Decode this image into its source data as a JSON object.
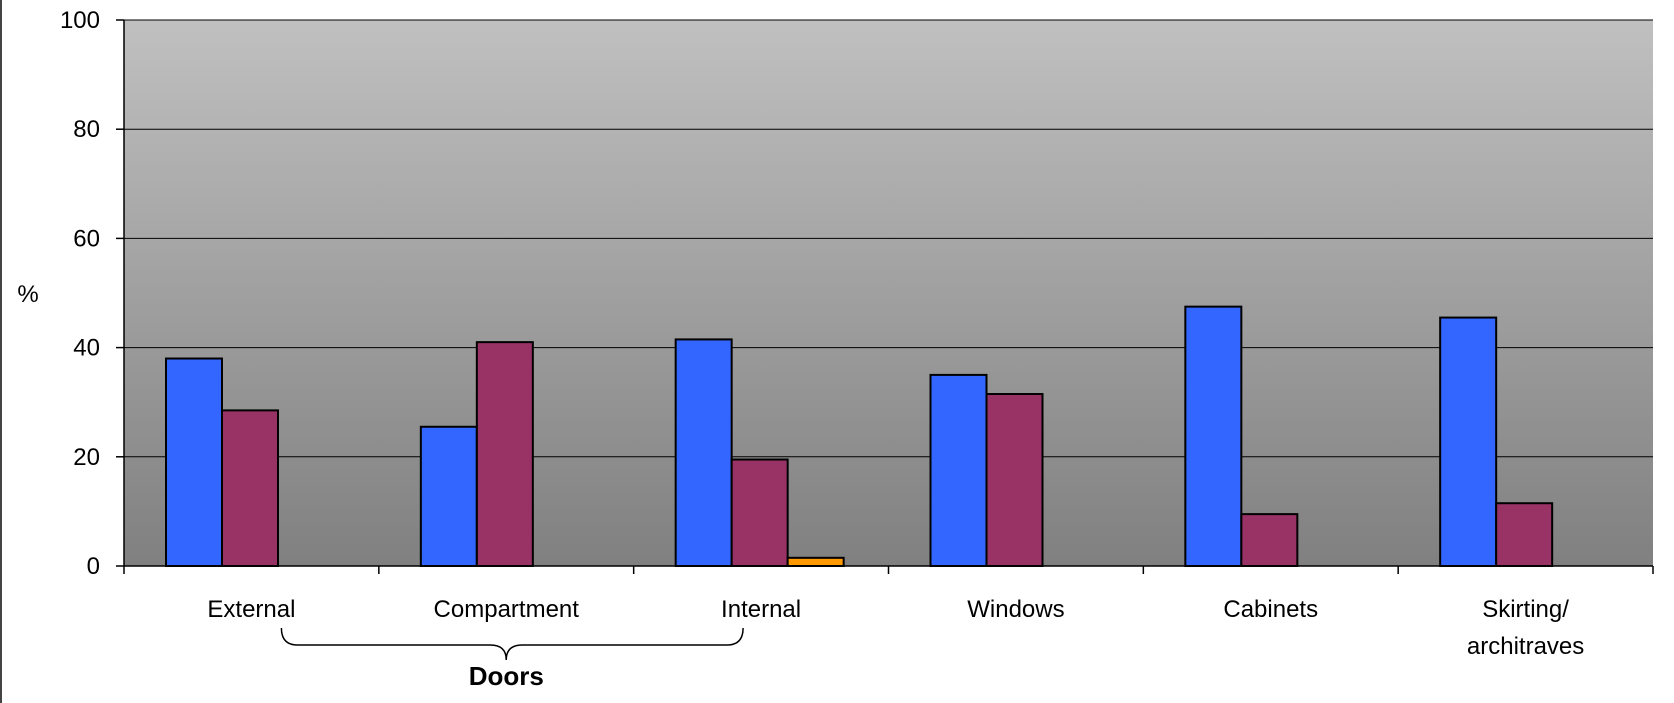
{
  "chart_data": {
    "type": "bar",
    "ylabel": "%",
    "ylim": [
      0,
      100
    ],
    "yticks": [
      0,
      20,
      40,
      60,
      80,
      100
    ],
    "grid": true,
    "categories": [
      [
        "External"
      ],
      [
        "Compartment"
      ],
      [
        "Internal"
      ],
      [
        "Windows"
      ],
      [
        "Cabinets"
      ],
      [
        "Skirting/",
        "architraves"
      ]
    ],
    "series": [
      {
        "color": "#3366FF",
        "values": [
          38,
          25.5,
          41.5,
          35,
          47.5,
          45.5
        ]
      },
      {
        "color": "#993366",
        "values": [
          28.5,
          41,
          19.5,
          31.5,
          9.5,
          11.5
        ]
      },
      {
        "color": "#FF9900",
        "values": [
          0,
          0,
          1.5,
          0,
          0,
          0
        ]
      }
    ],
    "annotations": [
      {
        "text": "Doors",
        "spans": [
          "External",
          "Compartment",
          "Internal"
        ]
      }
    ]
  }
}
